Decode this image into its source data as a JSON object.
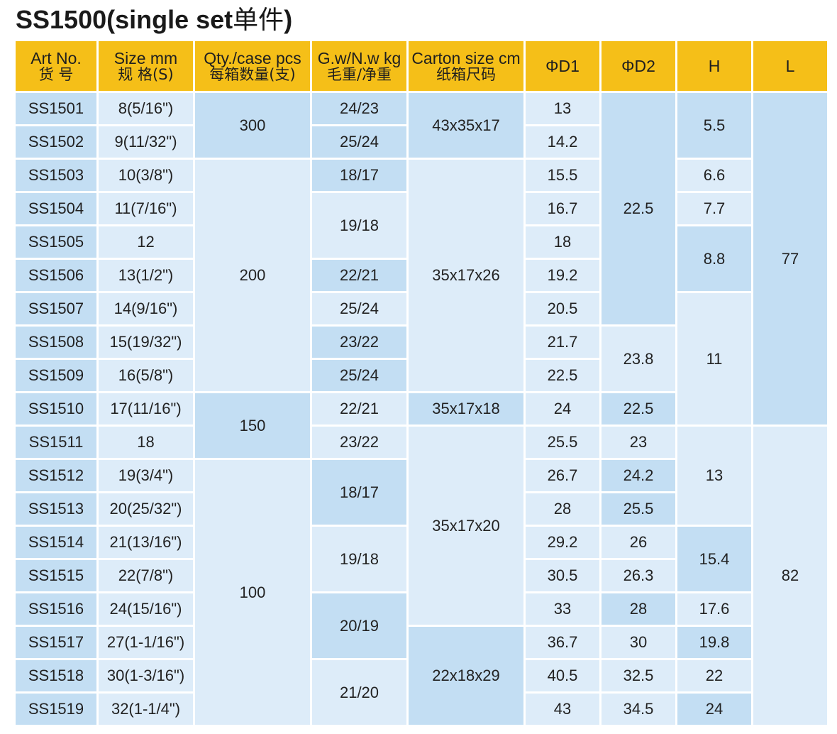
{
  "title": {
    "main": "SS1500(single set",
    "cn": "单件",
    "close": ")"
  },
  "headers": [
    {
      "en": "Art No.",
      "cn": "货  号"
    },
    {
      "en": "Size mm",
      "cn": "规 格(S)"
    },
    {
      "en": "Qty./case pcs",
      "cn": "每箱数量(支)"
    },
    {
      "en": "G.w/N.w kg",
      "cn": "毛重/净重"
    },
    {
      "en": "Carton size cm",
      "cn": "纸箱尺码"
    },
    {
      "en": "ΦD1",
      "cn": ""
    },
    {
      "en": "ΦD2",
      "cn": ""
    },
    {
      "en": "H",
      "cn": ""
    },
    {
      "en": "L",
      "cn": ""
    }
  ],
  "art_no": [
    "SS1501",
    "SS1502",
    "SS1503",
    "SS1504",
    "SS1505",
    "SS1506",
    "SS1507",
    "SS1508",
    "SS1509",
    "SS1510",
    "SS1511",
    "SS1512",
    "SS1513",
    "SS1514",
    "SS1515",
    "SS1516",
    "SS1517",
    "SS1518",
    "SS1519"
  ],
  "size": [
    "8(5/16\")",
    "9(11/32\")",
    "10(3/8\")",
    "11(7/16\")",
    "12",
    "13(1/2\")",
    "14(9/16\")",
    "15(19/32\")",
    "16(5/8\")",
    "17(11/16\")",
    "18",
    "19(3/4\")",
    "20(25/32\")",
    "21(13/16\")",
    "22(7/8\")",
    "24(15/16\")",
    "27(1-1/16\")",
    "30(1-3/16\")",
    "32(1-1/4\")"
  ],
  "qty": [
    "300",
    "200",
    "150",
    "100"
  ],
  "weight": [
    "24/23",
    "25/24",
    "18/17",
    "19/18",
    "22/21",
    "25/24",
    "23/22",
    "25/24",
    "22/21",
    "23/22",
    "18/17",
    "19/18",
    "20/19",
    "21/20"
  ],
  "carton": [
    "43x35x17",
    "35x17x26",
    "35x17x18",
    "35x17x20",
    "22x18x29"
  ],
  "d1": [
    "13",
    "14.2",
    "15.5",
    "16.7",
    "18",
    "19.2",
    "20.5",
    "21.7",
    "22.5",
    "24",
    "25.5",
    "26.7",
    "28",
    "29.2",
    "30.5",
    "33",
    "36.7",
    "40.5",
    "43"
  ],
  "d2": [
    "22.5",
    "23.8",
    "22.5",
    "23",
    "24.2",
    "25.5",
    "26",
    "26.3",
    "28",
    "30",
    "32.5",
    "34.5"
  ],
  "h": [
    "5.5",
    "6.6",
    "7.7",
    "8.8",
    "11",
    "13",
    "15.4",
    "17.6",
    "19.8",
    "22",
    "24"
  ],
  "l": [
    "77",
    "82"
  ]
}
